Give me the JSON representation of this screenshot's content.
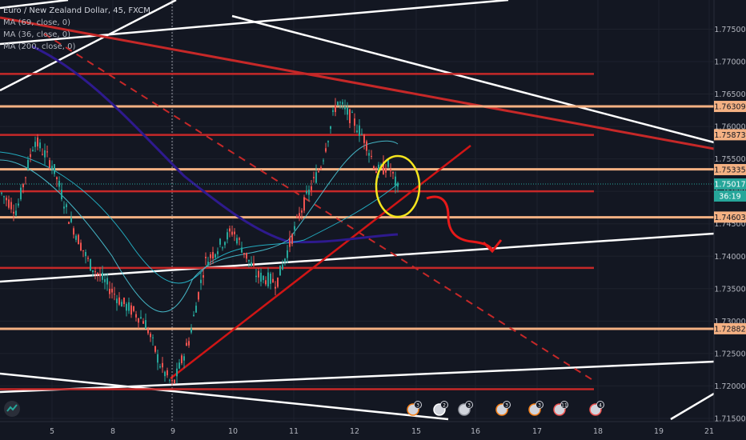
{
  "header": {
    "symbol_title": "Euro / New Zealand Dollar, 45, FXCM",
    "indicators": [
      "MA (69, close, 0)",
      "MA (36, close, 0)",
      "MA (200, close, 0)"
    ]
  },
  "price_badges": {
    "current_price": "1.75017",
    "countdown": "36:19"
  },
  "event_badges": [
    "3",
    "2",
    "3",
    "3",
    "3",
    "11",
    "4"
  ],
  "colors": {
    "background": "#131722",
    "axis_text": "#b2b5be",
    "support_resistance_line": "#c62828",
    "level_line": "#f4b183",
    "trend_white": "#ffffff",
    "ma_200": "#2e1a8e",
    "ma_short": "#26c6da",
    "candle_up": "#26a69a",
    "candle_down": "#ef5350",
    "annotation_circle": "#f5e51d"
  },
  "chart_data": {
    "type": "candlestick",
    "x_ticks": [
      "5",
      "8",
      "9",
      "10",
      "11",
      "12",
      "15",
      "16",
      "17",
      "18",
      "19",
      "21"
    ],
    "y_ticks": [
      "1.77500",
      "1.77000",
      "1.76500",
      "1.76000",
      "1.75500",
      "1.75000",
      "1.74500",
      "1.74000",
      "1.73500",
      "1.73000",
      "1.72500",
      "1.72000",
      "1.71500"
    ],
    "ylim": [
      1.7145,
      1.7795
    ],
    "labeled_levels": [
      "1.76309",
      "1.75873",
      "1.75335",
      "1.74603",
      "1.72882"
    ],
    "horizontal_levels_red": [
      1.7681,
      1.7587,
      1.75,
      1.7382,
      1.7195
    ],
    "horizontal_levels_orange": [
      1.7631,
      1.7534,
      1.746,
      1.7288
    ],
    "price_path": [
      {
        "x": 0,
        "y": 1.7498
      },
      {
        "x": 20,
        "y": 1.747
      },
      {
        "x": 42,
        "y": 1.758
      },
      {
        "x": 65,
        "y": 1.754
      },
      {
        "x": 85,
        "y": 1.746
      },
      {
        "x": 110,
        "y": 1.739
      },
      {
        "x": 130,
        "y": 1.736
      },
      {
        "x": 150,
        "y": 1.733
      },
      {
        "x": 180,
        "y": 1.73
      },
      {
        "x": 200,
        "y": 1.723
      },
      {
        "x": 215,
        "y": 1.72
      },
      {
        "x": 235,
        "y": 1.727
      },
      {
        "x": 255,
        "y": 1.739
      },
      {
        "x": 290,
        "y": 1.744
      },
      {
        "x": 320,
        "y": 1.737
      },
      {
        "x": 345,
        "y": 1.736
      },
      {
        "x": 375,
        "y": 1.747
      },
      {
        "x": 400,
        "y": 1.754
      },
      {
        "x": 420,
        "y": 1.764
      },
      {
        "x": 440,
        "y": 1.761
      },
      {
        "x": 455,
        "y": 1.758
      },
      {
        "x": 470,
        "y": 1.753
      },
      {
        "x": 485,
        "y": 1.754
      },
      {
        "x": 497,
        "y": 1.75
      }
    ]
  }
}
